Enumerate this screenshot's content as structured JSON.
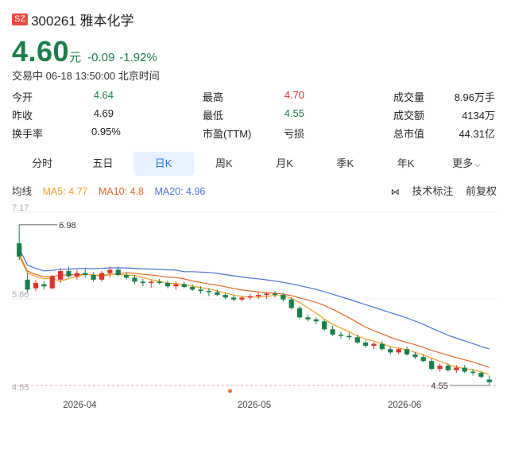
{
  "stock": {
    "exchange": "SZ",
    "code_name": "300261 雅本化学",
    "price": "4.60",
    "unit": "元",
    "change": "-0.09",
    "change_pct": "-1.92%",
    "status": "交易中 06-18 13:50:00 北京时间"
  },
  "stats": {
    "open_label": "今开",
    "open": "4.64",
    "high_label": "最高",
    "high": "4.70",
    "volume_label": "成交量",
    "volume": "8.96万手",
    "prev_label": "昨收",
    "prev": "4.69",
    "low_label": "最低",
    "low": "4.55",
    "amount_label": "成交额",
    "amount": "4134万",
    "turnover_label": "换手率",
    "turnover": "0.95%",
    "pe_label": "市盈(TTM)",
    "pe": "亏损",
    "mcap_label": "总市值",
    "mcap": "44.31亿"
  },
  "tabs": [
    "分时",
    "五日",
    "日K",
    "周K",
    "月K",
    "季K",
    "年K",
    "更多"
  ],
  "ma": {
    "label": "均线",
    "ma5": "MA5: 4.77",
    "ma10": "MA10: 4.8",
    "ma20": "MA20: 4.96"
  },
  "tools": {
    "indicator": "技术标注",
    "adjust": "前复权"
  },
  "colors": {
    "up": "#d9352a",
    "down": "#1a7f4b",
    "ma5": "#f0a020",
    "ma10": "#e06a2a",
    "ma20": "#4a72d8",
    "active_tab": "#2a6fdb"
  },
  "chart_data": {
    "type": "candlestick",
    "y_ticks": [
      "7.17",
      "5.86",
      "4.55"
    ],
    "x_ticks": [
      "2026-04",
      "2026-05",
      "2026-06"
    ],
    "ylim": [
      4.55,
      7.17
    ],
    "max_label": "6.98",
    "min_label": "4.55",
    "candles": [
      [
        6.7,
        6.98,
        6.45,
        6.5
      ],
      [
        6.15,
        6.25,
        5.95,
        6.0
      ],
      [
        6.02,
        6.15,
        5.98,
        6.1
      ],
      [
        6.08,
        6.12,
        6.0,
        6.05
      ],
      [
        6.02,
        6.22,
        6.0,
        6.2
      ],
      [
        6.15,
        6.32,
        6.1,
        6.28
      ],
      [
        6.28,
        6.35,
        6.18,
        6.2
      ],
      [
        6.2,
        6.3,
        6.15,
        6.25
      ],
      [
        6.25,
        6.32,
        6.18,
        6.22
      ],
      [
        6.22,
        6.26,
        6.12,
        6.15
      ],
      [
        6.15,
        6.28,
        6.12,
        6.25
      ],
      [
        6.25,
        6.35,
        6.18,
        6.3
      ],
      [
        6.3,
        6.35,
        6.2,
        6.22
      ],
      [
        6.22,
        6.26,
        6.15,
        6.18
      ],
      [
        6.18,
        6.22,
        6.08,
        6.12
      ],
      [
        6.12,
        6.16,
        6.05,
        6.1
      ],
      [
        6.1,
        6.14,
        6.03,
        6.12
      ],
      [
        6.12,
        6.16,
        6.08,
        6.1
      ],
      [
        6.1,
        6.13,
        6.02,
        6.05
      ],
      [
        6.05,
        6.12,
        6.0,
        6.08
      ],
      [
        6.08,
        6.12,
        6.02,
        6.04
      ],
      [
        6.04,
        6.08,
        5.98,
        6.0
      ],
      [
        6.0,
        6.05,
        5.94,
        5.98
      ],
      [
        5.98,
        6.02,
        5.9,
        5.96
      ],
      [
        5.96,
        6.0,
        5.9,
        5.92
      ],
      [
        5.92,
        5.95,
        5.85,
        5.88
      ],
      [
        5.88,
        5.92,
        5.82,
        5.85
      ],
      [
        5.85,
        5.9,
        5.82,
        5.88
      ],
      [
        5.88,
        5.93,
        5.85,
        5.9
      ],
      [
        5.9,
        5.95,
        5.86,
        5.92
      ],
      [
        5.92,
        5.96,
        5.86,
        5.94
      ],
      [
        5.94,
        5.98,
        5.88,
        5.92
      ],
      [
        5.92,
        5.95,
        5.82,
        5.85
      ],
      [
        5.85,
        5.88,
        5.7,
        5.72
      ],
      [
        5.72,
        5.75,
        5.55,
        5.58
      ],
      [
        5.58,
        5.62,
        5.52,
        5.55
      ],
      [
        5.55,
        5.58,
        5.48,
        5.52
      ],
      [
        5.52,
        5.55,
        5.38,
        5.4
      ],
      [
        5.4,
        5.45,
        5.3,
        5.32
      ],
      [
        5.32,
        5.36,
        5.26,
        5.3
      ],
      [
        5.3,
        5.35,
        5.24,
        5.28
      ],
      [
        5.28,
        5.32,
        5.18,
        5.2
      ],
      [
        5.2,
        5.24,
        5.12,
        5.15
      ],
      [
        5.15,
        5.2,
        5.1,
        5.18
      ],
      [
        5.18,
        5.22,
        5.08,
        5.1
      ],
      [
        5.1,
        5.14,
        5.02,
        5.05
      ],
      [
        5.05,
        5.12,
        5.02,
        5.1
      ],
      [
        5.1,
        5.14,
        5.0,
        5.02
      ],
      [
        5.02,
        5.06,
        4.95,
        4.98
      ],
      [
        4.98,
        5.02,
        4.9,
        4.92
      ],
      [
        4.92,
        4.96,
        4.78,
        4.8
      ],
      [
        4.8,
        4.88,
        4.76,
        4.85
      ],
      [
        4.85,
        4.88,
        4.76,
        4.78
      ],
      [
        4.78,
        4.86,
        4.74,
        4.82
      ],
      [
        4.82,
        4.86,
        4.74,
        4.76
      ],
      [
        4.76,
        4.8,
        4.7,
        4.74
      ],
      [
        4.74,
        4.76,
        4.66,
        4.68
      ],
      [
        4.64,
        4.7,
        4.55,
        4.6
      ]
    ]
  }
}
